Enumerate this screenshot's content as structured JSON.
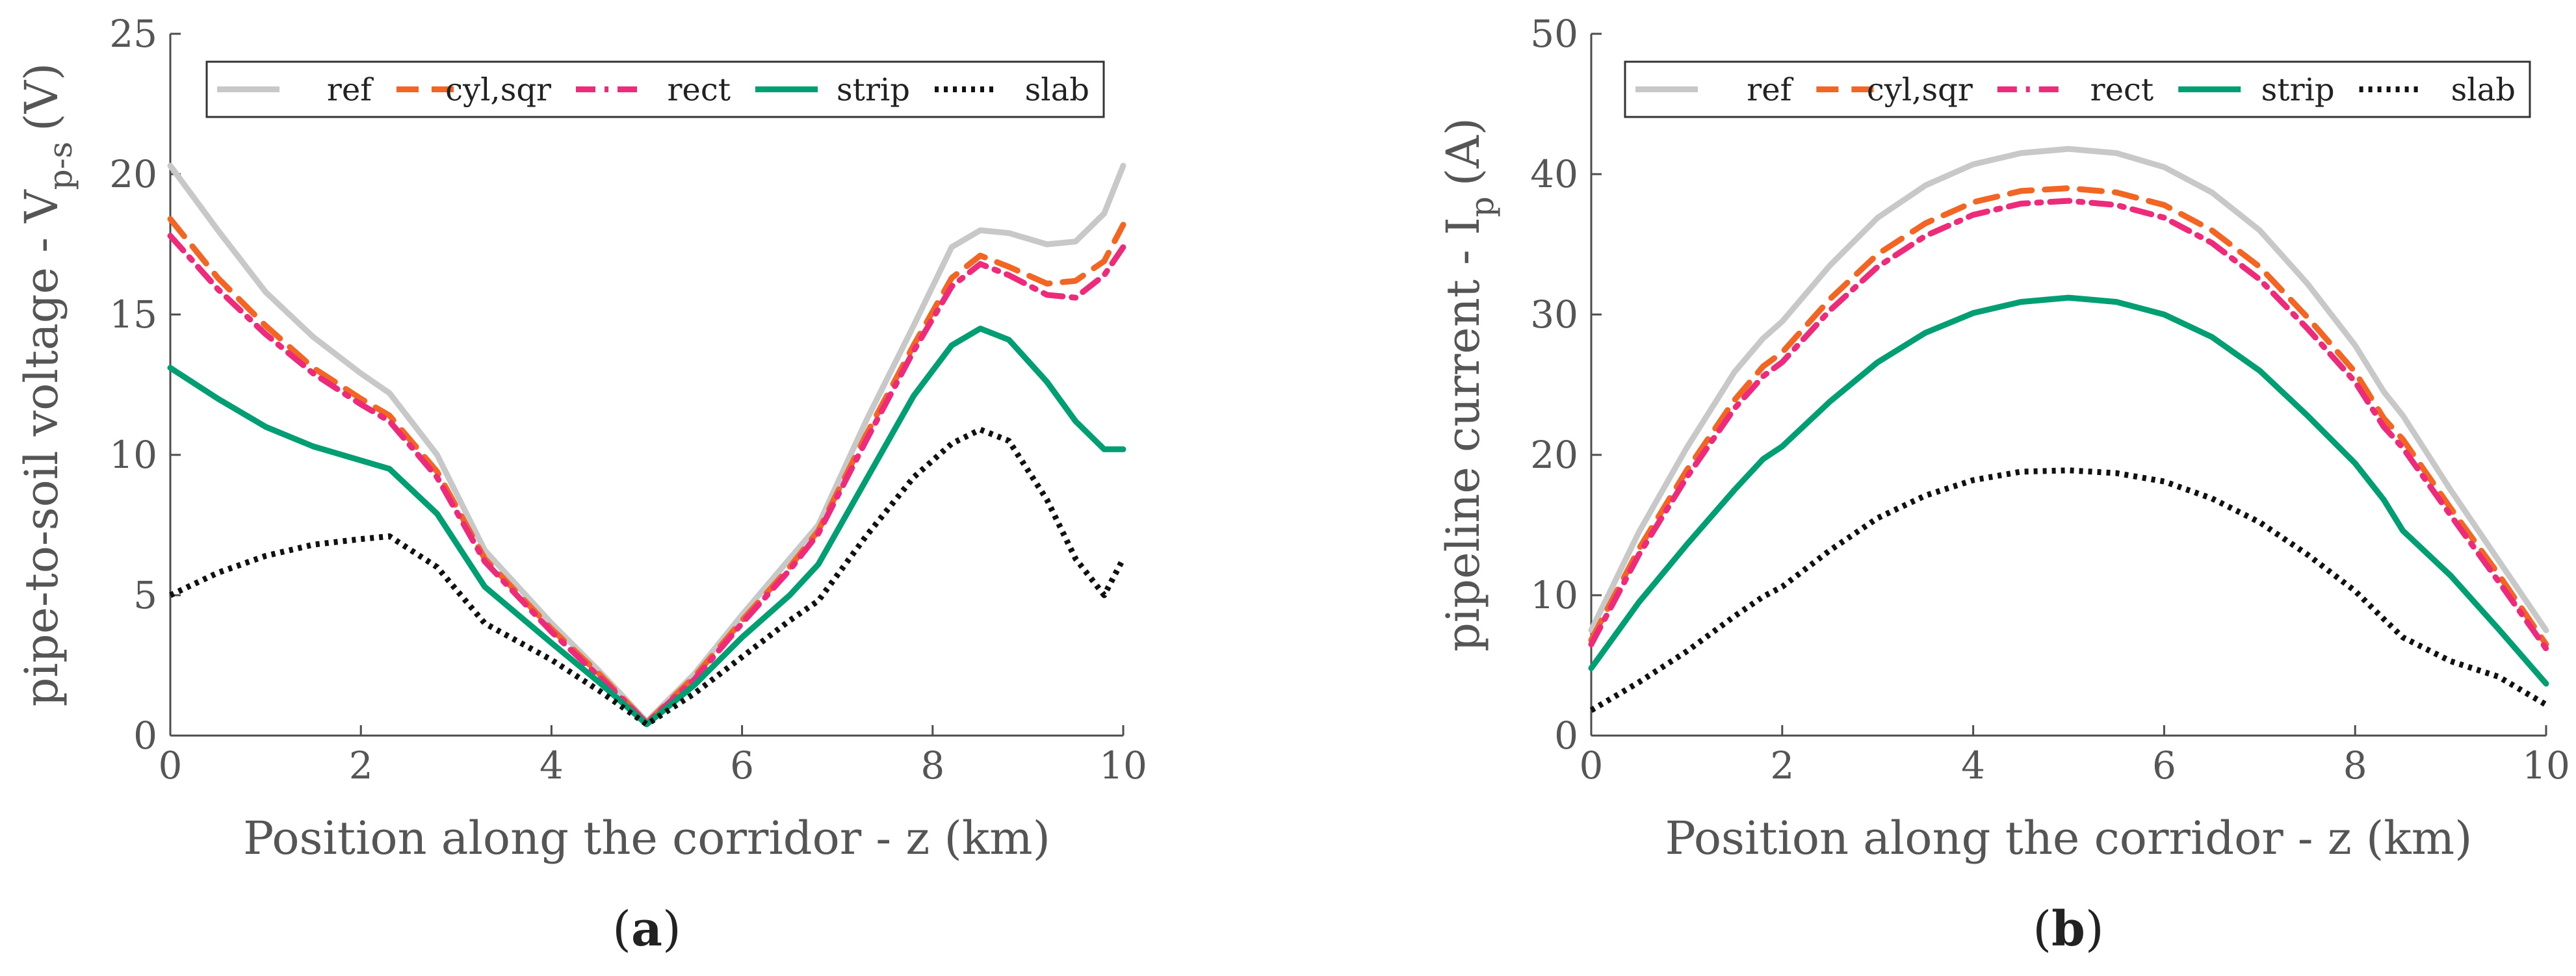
{
  "chart_data": [
    {
      "type": "line",
      "panel_label": "a",
      "xlabel": "Position along the corridor - z (km)",
      "ylabel": "pipe-to-soil voltage - V",
      "ylabel_sub": "p-s",
      "ylabel_unit": "(V)",
      "xlim": [
        0,
        10
      ],
      "ylim": [
        0,
        25
      ],
      "xticks": [
        "0",
        "2",
        "4",
        "6",
        "8",
        "10"
      ],
      "yticks": [
        "0",
        "5",
        "10",
        "15",
        "20",
        "25"
      ],
      "grid": false,
      "legend_position": "top",
      "series": [
        {
          "name": "ref",
          "color": "#c8c8c8",
          "dash": "solid",
          "x": [
            0,
            0.5,
            1,
            1.5,
            2,
            2.3,
            2.8,
            3.3,
            4,
            4.5,
            5,
            5.5,
            6,
            6.5,
            6.8,
            7.3,
            7.8,
            8.2,
            8.5,
            8.8,
            9.2,
            9.5,
            9.8,
            10
          ],
          "y": [
            20.3,
            18.0,
            15.8,
            14.2,
            12.9,
            12.2,
            10.0,
            6.6,
            4.0,
            2.3,
            0.5,
            2.2,
            4.3,
            6.3,
            7.5,
            11.2,
            14.6,
            17.4,
            18.0,
            17.9,
            17.5,
            17.6,
            18.6,
            20.3
          ]
        },
        {
          "name": "cyl,sqr",
          "color": "#f26522",
          "dash": "dashed",
          "x": [
            0,
            0.5,
            1,
            1.5,
            2,
            2.3,
            2.8,
            3.3,
            4,
            4.5,
            5,
            5.5,
            6,
            6.5,
            6.8,
            7.3,
            7.8,
            8.2,
            8.5,
            8.8,
            9.2,
            9.5,
            9.8,
            10
          ],
          "y": [
            18.4,
            16.3,
            14.6,
            13.1,
            12.0,
            11.4,
            9.4,
            6.3,
            3.8,
            2.2,
            0.45,
            2.1,
            4.1,
            6.0,
            7.3,
            10.7,
            13.9,
            16.3,
            17.1,
            16.7,
            16.1,
            16.2,
            16.9,
            18.2
          ]
        },
        {
          "name": "rect",
          "color": "#ee2a7b",
          "dash": "dashdot",
          "x": [
            0,
            0.5,
            1,
            1.5,
            2,
            2.3,
            2.8,
            3.3,
            4,
            4.5,
            5,
            5.5,
            6,
            6.5,
            6.8,
            7.3,
            7.8,
            8.2,
            8.5,
            8.8,
            9.2,
            9.5,
            9.8,
            10
          ],
          "y": [
            17.8,
            15.9,
            14.3,
            12.9,
            11.8,
            11.2,
            9.2,
            6.2,
            3.7,
            2.1,
            0.45,
            2.0,
            4.0,
            5.9,
            7.2,
            10.5,
            13.7,
            16.0,
            16.8,
            16.4,
            15.7,
            15.6,
            16.4,
            17.4
          ]
        },
        {
          "name": "strip",
          "color": "#009e73",
          "dash": "solid",
          "x": [
            0,
            0.5,
            1,
            1.5,
            2,
            2.3,
            2.8,
            3.3,
            4,
            4.5,
            5,
            5.5,
            6,
            6.5,
            6.8,
            7.3,
            7.8,
            8.2,
            8.5,
            8.8,
            9.2,
            9.5,
            9.8,
            10
          ],
          "y": [
            13.1,
            12.0,
            11.0,
            10.3,
            9.8,
            9.5,
            7.9,
            5.3,
            3.3,
            1.9,
            0.4,
            1.8,
            3.5,
            5.0,
            6.1,
            9.1,
            12.1,
            13.9,
            14.5,
            14.1,
            12.6,
            11.2,
            10.2,
            10.2
          ]
        },
        {
          "name": "slab",
          "color": "#111111",
          "dash": "dotted",
          "x": [
            0,
            0.5,
            1,
            1.5,
            2,
            2.3,
            2.8,
            3.3,
            4,
            4.5,
            5,
            5.5,
            6,
            6.5,
            6.8,
            7.3,
            7.8,
            8.2,
            8.5,
            8.8,
            9.2,
            9.5,
            9.8,
            10
          ],
          "y": [
            5.0,
            5.8,
            6.4,
            6.8,
            7.0,
            7.1,
            6.0,
            4.0,
            2.7,
            1.6,
            0.4,
            1.5,
            2.8,
            4.1,
            4.8,
            7.1,
            9.2,
            10.4,
            10.9,
            10.5,
            8.4,
            6.3,
            5.0,
            6.3
          ]
        }
      ]
    },
    {
      "type": "line",
      "panel_label": "b",
      "xlabel": "Position along the corridor - z (km)",
      "ylabel": "pipeline current - I",
      "ylabel_sub": "p",
      "ylabel_unit": "(A)",
      "xlim": [
        0,
        10
      ],
      "ylim": [
        0,
        50
      ],
      "xticks": [
        "0",
        "2",
        "4",
        "6",
        "8",
        "10"
      ],
      "yticks": [
        "0",
        "10",
        "20",
        "30",
        "40",
        "50"
      ],
      "grid": false,
      "legend_position": "top",
      "series": [
        {
          "name": "ref",
          "color": "#c8c8c8",
          "dash": "solid",
          "x": [
            0,
            0.5,
            1,
            1.5,
            1.8,
            2,
            2.5,
            3,
            3.5,
            4,
            4.5,
            5,
            5.5,
            6,
            6.5,
            7,
            7.5,
            8,
            8.3,
            8.5,
            9,
            9.5,
            10
          ],
          "y": [
            7.5,
            14.5,
            20.5,
            25.9,
            28.3,
            29.5,
            33.5,
            36.9,
            39.2,
            40.7,
            41.5,
            41.8,
            41.5,
            40.5,
            38.7,
            36.0,
            32.2,
            27.8,
            24.5,
            22.8,
            17.5,
            12.5,
            7.5
          ]
        },
        {
          "name": "cyl,sqr",
          "color": "#f26522",
          "dash": "dashed",
          "x": [
            0,
            0.5,
            1,
            1.5,
            1.8,
            2,
            2.5,
            3,
            3.5,
            4,
            4.5,
            5,
            5.5,
            6,
            6.5,
            7,
            7.5,
            8,
            8.3,
            8.5,
            9,
            9.5,
            10
          ],
          "y": [
            6.8,
            13.3,
            18.9,
            23.9,
            26.3,
            27.3,
            31.1,
            34.3,
            36.5,
            38.0,
            38.8,
            39.0,
            38.7,
            37.8,
            36.0,
            33.4,
            29.8,
            25.9,
            22.6,
            21.1,
            16.2,
            11.5,
            6.5
          ]
        },
        {
          "name": "rect",
          "color": "#ee2a7b",
          "dash": "dashdot",
          "x": [
            0,
            0.5,
            1,
            1.5,
            1.8,
            2,
            2.5,
            3,
            3.5,
            4,
            4.5,
            5,
            5.5,
            6,
            6.5,
            7,
            7.5,
            8,
            8.3,
            8.5,
            9,
            9.5,
            10
          ],
          "y": [
            6.5,
            12.9,
            18.4,
            23.3,
            25.6,
            26.6,
            30.3,
            33.4,
            35.6,
            37.1,
            37.9,
            38.1,
            37.8,
            36.9,
            35.1,
            32.5,
            29.0,
            25.2,
            22.0,
            20.5,
            15.7,
            11.0,
            6.2
          ]
        },
        {
          "name": "strip",
          "color": "#009e73",
          "dash": "solid",
          "x": [
            0,
            0.5,
            1,
            1.5,
            1.8,
            2,
            2.5,
            3,
            3.5,
            4,
            4.5,
            5,
            5.5,
            6,
            6.5,
            7,
            7.5,
            8,
            8.3,
            8.5,
            9,
            9.5,
            10
          ],
          "y": [
            4.8,
            9.5,
            13.6,
            17.5,
            19.7,
            20.6,
            23.8,
            26.6,
            28.7,
            30.1,
            30.9,
            31.2,
            30.9,
            30.0,
            28.4,
            26.0,
            22.8,
            19.4,
            16.8,
            14.6,
            11.4,
            7.6,
            3.7
          ]
        },
        {
          "name": "slab",
          "color": "#111111",
          "dash": "dotted",
          "x": [
            0,
            0.5,
            1,
            1.5,
            1.8,
            2,
            2.5,
            3,
            3.5,
            4,
            4.5,
            5,
            5.5,
            6,
            6.5,
            7,
            7.5,
            8,
            8.3,
            8.5,
            9,
            9.5,
            10
          ],
          "y": [
            1.8,
            3.8,
            6.0,
            8.5,
            9.9,
            10.6,
            13.2,
            15.5,
            17.1,
            18.2,
            18.8,
            18.9,
            18.7,
            18.1,
            16.9,
            15.2,
            12.9,
            10.3,
            8.3,
            7.0,
            5.3,
            4.2,
            2.2
          ]
        }
      ]
    }
  ]
}
